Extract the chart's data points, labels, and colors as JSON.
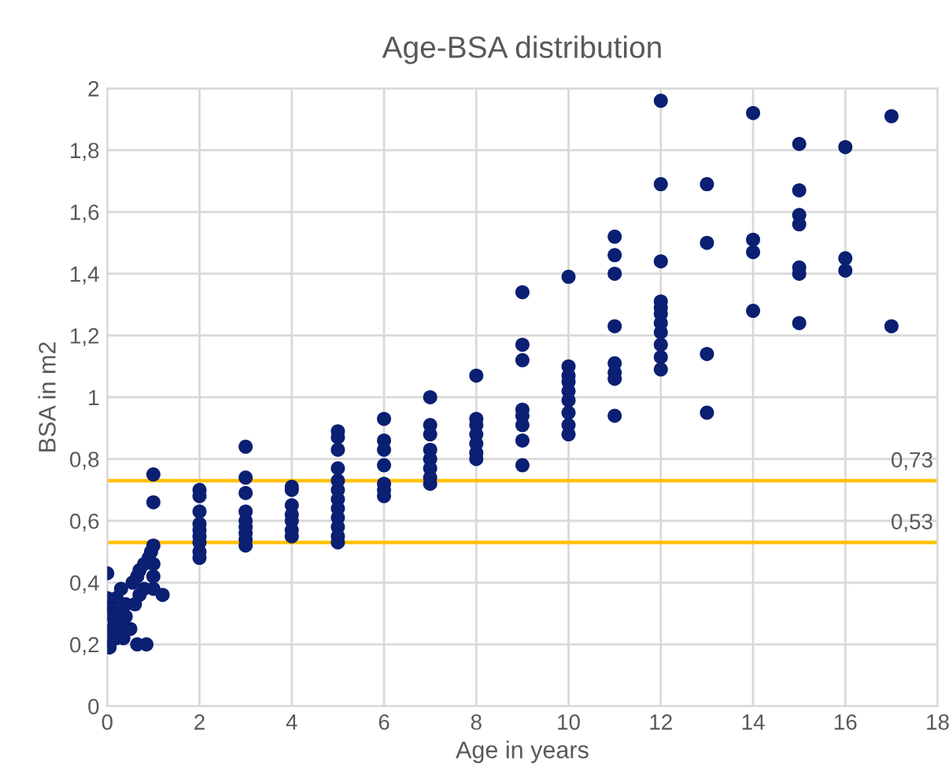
{
  "chart_data": {
    "type": "scatter",
    "title": "Age-BSA distribution",
    "xlabel": "Age in years",
    "ylabel": "BSA in m2",
    "x": [
      0,
      0,
      0,
      0,
      0.05,
      0.1,
      0.1,
      0.15,
      0.2,
      0.2,
      0.25,
      0.3,
      0.3,
      0.35,
      0.4,
      0.4,
      0.5,
      0.55,
      0.6,
      0.65,
      0.65,
      0.7,
      0.7,
      0.8,
      0.8,
      0.85,
      0.9,
      0.95,
      1,
      1,
      1,
      1,
      1,
      1,
      1.2,
      2,
      2,
      2,
      2,
      2,
      2,
      2,
      2,
      2,
      3,
      3,
      3,
      3,
      3,
      3,
      3,
      3,
      3,
      4,
      4,
      4,
      4,
      4,
      4,
      4,
      5,
      5,
      5,
      5,
      5,
      5,
      5,
      5,
      5,
      5,
      5,
      5,
      6,
      6,
      6,
      6,
      6,
      6,
      6,
      7,
      7,
      7,
      7,
      7,
      7,
      7,
      7,
      8,
      8,
      8,
      8,
      8,
      8,
      8,
      9,
      9,
      9,
      9,
      9,
      9,
      9,
      9,
      10,
      10,
      10,
      10,
      10,
      10,
      10,
      10,
      10,
      11,
      11,
      11,
      11,
      11,
      11,
      11,
      11,
      12,
      12,
      12,
      12,
      12,
      12,
      12,
      12,
      12,
      12,
      12,
      13,
      13,
      13,
      13,
      14,
      14,
      14,
      14,
      15,
      15,
      15,
      15,
      15,
      15,
      15,
      16,
      16,
      16,
      17,
      17
    ],
    "values": [
      0.43,
      0.35,
      0.3,
      0.21,
      0.19,
      0.25,
      0.32,
      0.28,
      0.22,
      0.35,
      0.3,
      0.38,
      0.26,
      0.22,
      0.33,
      0.29,
      0.25,
      0.4,
      0.33,
      0.2,
      0.42,
      0.36,
      0.44,
      0.46,
      0.38,
      0.2,
      0.48,
      0.5,
      0.52,
      0.46,
      0.42,
      0.38,
      0.75,
      0.66,
      0.36,
      0.7,
      0.68,
      0.63,
      0.59,
      0.57,
      0.55,
      0.53,
      0.5,
      0.48,
      0.84,
      0.74,
      0.69,
      0.63,
      0.6,
      0.58,
      0.56,
      0.54,
      0.52,
      0.71,
      0.7,
      0.65,
      0.62,
      0.6,
      0.57,
      0.55,
      0.89,
      0.87,
      0.83,
      0.77,
      0.73,
      0.7,
      0.67,
      0.64,
      0.61,
      0.58,
      0.55,
      0.53,
      0.93,
      0.86,
      0.83,
      0.78,
      0.72,
      0.7,
      0.68,
      1.0,
      0.91,
      0.88,
      0.83,
      0.8,
      0.77,
      0.74,
      0.72,
      1.07,
      0.93,
      0.91,
      0.88,
      0.85,
      0.82,
      0.8,
      1.34,
      1.17,
      1.12,
      0.96,
      0.94,
      0.91,
      0.86,
      0.78,
      1.39,
      1.1,
      1.07,
      1.05,
      1.02,
      0.99,
      0.95,
      0.91,
      0.88,
      1.52,
      1.46,
      1.4,
      1.23,
      1.11,
      1.08,
      1.06,
      0.94,
      1.96,
      1.69,
      1.44,
      1.31,
      1.29,
      1.27,
      1.24,
      1.21,
      1.17,
      1.13,
      1.09,
      1.69,
      1.5,
      1.14,
      0.95,
      1.92,
      1.51,
      1.47,
      1.28,
      1.82,
      1.67,
      1.59,
      1.56,
      1.42,
      1.4,
      1.24,
      1.81,
      1.45,
      1.41,
      1.91,
      1.23
    ],
    "color": "#0b1f73",
    "marker": "circle",
    "xlim": [
      0,
      18
    ],
    "xticks": [
      0,
      2,
      4,
      6,
      8,
      10,
      12,
      14,
      16,
      18
    ],
    "ylim": [
      0,
      2
    ],
    "yticks": [
      0,
      {
        "value": 0.2,
        "label": "0,2"
      },
      {
        "value": 0.4,
        "label": "0,4"
      },
      {
        "value": 0.6,
        "label": "0,6"
      },
      {
        "value": 0.8,
        "label": "0,8"
      },
      1,
      {
        "value": 1.2,
        "label": "1,2"
      },
      {
        "value": 1.4,
        "label": "1,4"
      },
      {
        "value": 1.6,
        "label": "1,6"
      },
      {
        "value": 1.8,
        "label": "1,8"
      },
      2
    ],
    "ref_lines": [
      {
        "axis": "y",
        "value": 0.73,
        "label": "0,73",
        "color": "#ffc000"
      },
      {
        "axis": "y",
        "value": 0.53,
        "label": "0,53",
        "color": "#ffc000"
      }
    ],
    "grid": true,
    "legend": false
  }
}
